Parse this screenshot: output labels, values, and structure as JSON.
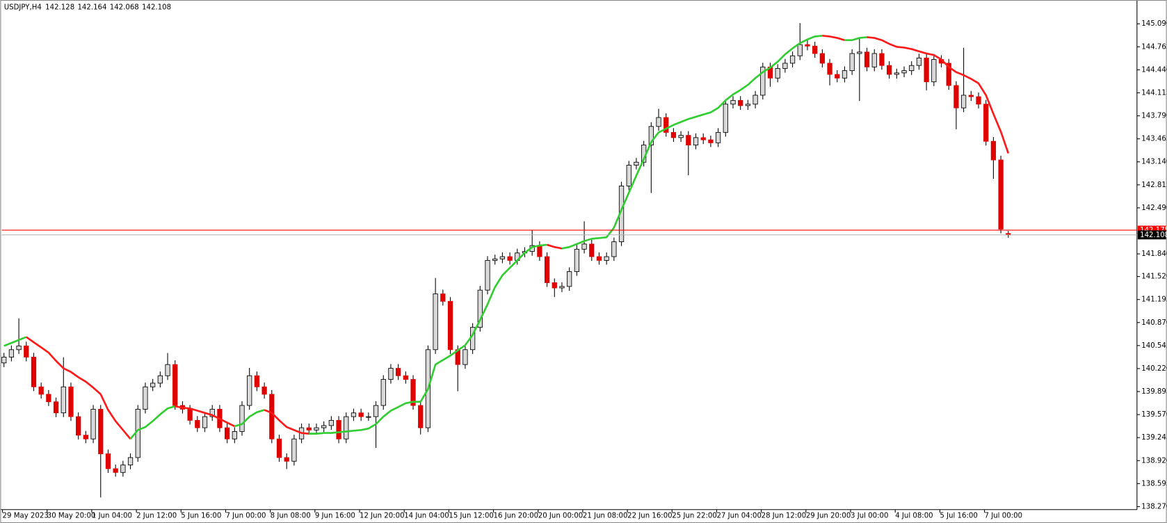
{
  "chart_data": {
    "type": "candlestick",
    "title": "USDJPY,H4",
    "categories": [
      "29 May 2023",
      null,
      null,
      null,
      null,
      null,
      "30 May 20:00",
      null,
      null,
      null,
      null,
      null,
      "1 Jun 04:00",
      null,
      null,
      null,
      null,
      null,
      "2 Jun 12:00",
      null,
      null,
      null,
      null,
      null,
      "5 Jun 16:00",
      null,
      null,
      null,
      null,
      null,
      "7 Jun 00:00",
      null,
      null,
      null,
      null,
      null,
      "8 Jun 08:00",
      null,
      null,
      null,
      null,
      null,
      "9 Jun 16:00",
      null,
      null,
      null,
      null,
      null,
      "12 Jun 20:00",
      null,
      null,
      null,
      null,
      null,
      "14 Jun 04:00",
      null,
      null,
      null,
      null,
      null,
      "15 Jun 12:00",
      null,
      null,
      null,
      null,
      null,
      "16 Jun 20:00",
      null,
      null,
      null,
      null,
      null,
      "20 Jun 00:00",
      null,
      null,
      null,
      null,
      null,
      "21 Jun 08:00",
      null,
      null,
      null,
      null,
      null,
      "22 Jun 16:00",
      null,
      null,
      null,
      null,
      null,
      "25 Jun 22:00",
      null,
      null,
      null,
      null,
      null,
      "27 Jun 04:00",
      null,
      null,
      null,
      null,
      null,
      "28 Jun 12:00",
      null,
      null,
      null,
      null,
      null,
      "29 Jun 20:00",
      null,
      null,
      null,
      null,
      null,
      "3 Jul 00:00",
      null,
      null,
      null,
      null,
      null,
      "4 Jul 08:00",
      null,
      null,
      null,
      null,
      null,
      "5 Jul 16:00",
      null,
      null,
      null,
      null,
      null,
      "7 Jul 00:00",
      null,
      null,
      null
    ],
    "open": [
      140.3,
      140.382,
      140.487,
      140.54,
      140.382,
      139.962,
      139.857,
      139.751,
      139.594,
      139.962,
      139.541,
      139.279,
      139.226,
      139.646,
      139.016,
      138.806,
      138.753,
      138.858,
      138.963,
      139.646,
      139.962,
      140.014,
      140.119,
      140.277,
      139.699,
      139.646,
      139.489,
      139.384,
      139.541,
      139.646,
      139.384,
      139.226,
      139.331,
      139.699,
      140.119,
      139.962,
      139.857,
      139.226,
      138.963,
      138.911,
      139.226,
      139.384,
      139.352,
      139.384,
      139.415,
      139.489,
      139.226,
      139.541,
      139.594,
      139.541,
      139.541,
      139.699,
      140.067,
      140.224,
      140.119,
      140.067,
      139.699,
      139.384,
      140.487,
      141.275,
      141.17,
      140.487,
      140.277,
      140.487,
      140.802,
      141.328,
      141.748,
      141.769,
      141.801,
      141.748,
      141.853,
      141.874,
      141.958,
      141.801,
      141.433,
      141.359,
      141.38,
      141.59,
      141.906,
      141.979,
      141.801,
      141.748,
      141.801,
      142.011,
      142.799,
      143.093,
      143.135,
      143.377,
      143.64,
      143.766,
      143.556,
      143.482,
      143.514,
      143.377,
      143.482,
      143.451,
      143.409,
      143.556,
      143.955,
      144.008,
      143.934,
      143.955,
      144.081,
      144.48,
      144.323,
      144.459,
      144.533,
      144.638,
      144.796,
      144.775,
      144.67,
      144.533,
      144.375,
      144.323,
      144.428,
      144.67,
      144.691,
      144.48,
      144.67,
      144.501,
      144.375,
      144.396,
      144.428,
      144.501,
      144.607,
      144.27,
      144.586,
      144.533,
      144.218,
      143.902,
      144.081,
      144.06,
      143.955,
      143.43,
      143.167,
      142.128
    ],
    "high": [
      140.442,
      140.547,
      140.93,
      140.6,
      140.442,
      140.022,
      139.917,
      139.811,
      140.38,
      140.022,
      139.601,
      139.339,
      139.706,
      139.706,
      139.076,
      138.866,
      138.918,
      139.023,
      139.706,
      140.022,
      140.074,
      140.179,
      140.44,
      140.337,
      139.759,
      139.706,
      139.549,
      139.601,
      139.706,
      139.706,
      139.444,
      139.391,
      139.759,
      140.23,
      140.179,
      140.022,
      139.917,
      139.286,
      139.023,
      139.286,
      139.444,
      139.444,
      139.444,
      139.475,
      139.549,
      139.549,
      139.601,
      139.654,
      139.654,
      139.601,
      139.759,
      140.127,
      140.284,
      140.284,
      140.179,
      140.127,
      139.759,
      140.547,
      141.5,
      141.335,
      141.23,
      140.547,
      140.547,
      140.862,
      141.388,
      141.808,
      141.829,
      141.861,
      141.861,
      141.913,
      141.934,
      142.18,
      142.018,
      141.861,
      141.493,
      141.44,
      141.65,
      141.966,
      142.3,
      142.039,
      141.861,
      141.861,
      142.071,
      142.859,
      143.153,
      143.195,
      143.437,
      143.7,
      143.89,
      143.826,
      143.616,
      143.574,
      143.574,
      143.542,
      143.542,
      143.511,
      143.616,
      144.015,
      144.068,
      144.068,
      144.015,
      144.141,
      144.54,
      144.54,
      144.519,
      144.593,
      144.698,
      145.1,
      144.856,
      144.835,
      144.73,
      144.593,
      144.435,
      144.488,
      144.73,
      144.9,
      144.751,
      144.73,
      144.73,
      144.561,
      144.456,
      144.488,
      144.561,
      144.667,
      144.667,
      144.646,
      144.646,
      144.593,
      144.278,
      144.75,
      144.141,
      144.12,
      144.015,
      143.49,
      143.227,
      142.164
    ],
    "low": [
      140.24,
      140.322,
      140.427,
      140.322,
      139.902,
      139.797,
      139.691,
      139.534,
      139.534,
      139.481,
      139.219,
      139.166,
      139.166,
      138.4,
      138.746,
      138.693,
      138.693,
      138.798,
      138.903,
      139.586,
      139.902,
      139.954,
      140.059,
      139.639,
      139.586,
      139.429,
      139.324,
      139.324,
      139.481,
      139.324,
      139.166,
      139.166,
      139.271,
      139.639,
      139.902,
      139.797,
      139.166,
      138.903,
      138.8,
      138.851,
      139.166,
      139.292,
      139.292,
      139.324,
      139.355,
      139.166,
      139.166,
      139.481,
      139.481,
      139.481,
      139.1,
      139.639,
      140.007,
      140.059,
      140.007,
      139.639,
      139.29,
      139.324,
      140.427,
      141.11,
      140.427,
      139.9,
      140.217,
      140.427,
      140.742,
      141.268,
      141.688,
      141.709,
      141.688,
      141.688,
      141.793,
      141.814,
      141.741,
      141.373,
      141.23,
      141.299,
      141.32,
      141.53,
      141.846,
      141.741,
      141.688,
      141.688,
      141.741,
      141.951,
      142.739,
      143.033,
      143.075,
      142.7,
      143.58,
      143.496,
      143.422,
      143.422,
      142.95,
      143.317,
      143.391,
      143.349,
      143.349,
      143.496,
      143.895,
      143.874,
      143.874,
      143.895,
      144.021,
      144.2,
      144.263,
      144.399,
      144.473,
      144.578,
      144.715,
      144.61,
      144.473,
      144.22,
      144.263,
      144.263,
      144.368,
      144.0,
      144.42,
      144.42,
      144.441,
      144.315,
      144.315,
      144.336,
      144.368,
      144.441,
      144.15,
      144.21,
      144.473,
      144.158,
      143.6,
      143.842,
      144.0,
      143.895,
      143.37,
      142.9,
      142.13,
      142.068
    ],
    "close": [
      140.382,
      140.487,
      140.54,
      140.382,
      139.962,
      139.857,
      139.751,
      139.594,
      139.962,
      139.541,
      139.279,
      139.226,
      139.646,
      139.016,
      138.806,
      138.753,
      138.858,
      138.963,
      139.646,
      139.962,
      140.014,
      140.119,
      140.277,
      139.699,
      139.646,
      139.489,
      139.384,
      139.541,
      139.646,
      139.384,
      139.226,
      139.331,
      139.699,
      140.119,
      139.962,
      139.857,
      139.226,
      138.963,
      138.911,
      139.226,
      139.384,
      139.352,
      139.384,
      139.415,
      139.489,
      139.226,
      139.541,
      139.594,
      139.541,
      139.541,
      139.699,
      140.067,
      140.224,
      140.119,
      140.067,
      139.699,
      139.384,
      140.487,
      141.275,
      141.17,
      140.487,
      140.277,
      140.487,
      140.802,
      141.328,
      141.748,
      141.769,
      141.801,
      141.748,
      141.853,
      141.874,
      141.958,
      141.801,
      141.433,
      141.359,
      141.38,
      141.59,
      141.906,
      141.979,
      141.801,
      141.748,
      141.801,
      142.011,
      142.799,
      143.093,
      143.135,
      143.377,
      143.64,
      143.766,
      143.556,
      143.482,
      143.514,
      143.377,
      143.482,
      143.451,
      143.409,
      143.556,
      143.955,
      144.008,
      143.934,
      143.955,
      144.081,
      144.48,
      144.323,
      144.459,
      144.533,
      144.638,
      144.796,
      144.775,
      144.67,
      144.533,
      144.375,
      144.323,
      144.428,
      144.67,
      144.691,
      144.48,
      144.67,
      144.501,
      144.375,
      144.396,
      144.428,
      144.501,
      144.607,
      144.27,
      144.586,
      144.533,
      144.218,
      143.902,
      144.081,
      144.06,
      143.955,
      143.43,
      143.167,
      142.19,
      142.108
    ],
    "up_color": "#d9d9d9",
    "down_color": "#e00000",
    "wick_color": "#000000",
    "ma": {
      "values": [
        140.54,
        140.582,
        140.624,
        140.666,
        140.592,
        140.519,
        140.445,
        140.329,
        140.224,
        140.172,
        140.098,
        140.035,
        139.951,
        139.857,
        139.636,
        139.478,
        139.352,
        139.226,
        139.352,
        139.394,
        139.478,
        139.573,
        139.657,
        139.688,
        139.667,
        139.657,
        139.625,
        139.594,
        139.562,
        139.51,
        139.457,
        139.405,
        139.436,
        139.541,
        139.604,
        139.636,
        139.594,
        139.489,
        139.394,
        139.352,
        139.31,
        139.3,
        139.3,
        139.31,
        139.31,
        139.321,
        139.331,
        139.342,
        139.352,
        139.373,
        139.436,
        139.541,
        139.625,
        139.678,
        139.73,
        139.751,
        139.751,
        139.93,
        140.277,
        140.34,
        140.403,
        140.477,
        140.55,
        140.697,
        140.907,
        141.128,
        141.37,
        141.538,
        141.643,
        141.748,
        141.853,
        141.937,
        141.958,
        141.969,
        141.937,
        141.916,
        141.937,
        141.979,
        142.021,
        142.053,
        142.063,
        142.074,
        142.211,
        142.463,
        142.704,
        142.946,
        143.177,
        143.419,
        143.556,
        143.608,
        143.661,
        143.703,
        143.745,
        143.776,
        143.808,
        143.839,
        143.902,
        144.008,
        144.092,
        144.155,
        144.228,
        144.323,
        144.407,
        144.47,
        144.554,
        144.659,
        144.743,
        144.817,
        144.869,
        144.911,
        144.922,
        144.911,
        144.89,
        144.859,
        144.859,
        144.89,
        144.901,
        144.89,
        144.859,
        144.806,
        144.764,
        144.754,
        144.733,
        144.701,
        144.67,
        144.649,
        144.586,
        144.48,
        144.407,
        144.365,
        144.312,
        144.249,
        144.081,
        143.818,
        143.566,
        143.261
      ],
      "up_color": "#32cd32",
      "down_color": "#ff1a1a"
    },
    "price_lines": [
      {
        "value": 142.175,
        "color": "#ff0000"
      },
      {
        "value": 142.108,
        "color": "#000000"
      }
    ],
    "ylim": [
      138.228,
      145.405
    ],
    "yticks": [
      {
        "value": 145.09,
        "label": "145.090"
      },
      144.765,
      {
        "value": 144.44,
        "label": "144.440"
      },
      144.115,
      {
        "value": 143.79,
        "label": "143.790"
      },
      143.465,
      {
        "value": 143.14,
        "label": "143.140"
      },
      142.815,
      {
        "value": 142.49,
        "label": "142.490"
      },
      {
        "value": 141.84,
        "label": "141.840"
      },
      {
        "value": 141.52,
        "label": "141.520"
      },
      141.195,
      {
        "value": 140.87,
        "label": "140.870"
      },
      140.545,
      {
        "value": 140.22,
        "label": "140.220"
      },
      139.895,
      {
        "value": 139.57,
        "label": "139.570"
      },
      139.245,
      {
        "value": 138.92,
        "label": "138.920"
      },
      138.595,
      {
        "value": 138.27,
        "label": "138.270"
      }
    ],
    "grid": false
  }
}
